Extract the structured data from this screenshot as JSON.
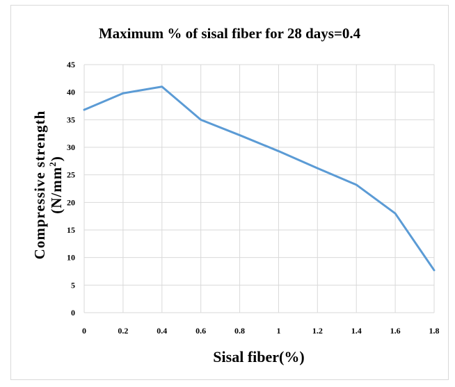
{
  "chart_data": {
    "type": "line",
    "title": "Maximum % of sisal fiber for 28 days=0.4",
    "xlabel": "Sisal fiber(%)",
    "ylabel_line1": "Compressive strength",
    "ylabel_line2_main": "(N/mm",
    "ylabel_line2_sup": "2",
    "ylabel_line2_end": ")",
    "x": [
      0,
      0.2,
      0.4,
      0.6,
      0.8,
      1.0,
      1.2,
      1.4,
      1.6,
      1.8
    ],
    "series": [
      {
        "values": [
          36.8,
          39.8,
          41.0,
          35.0,
          32.2,
          29.3,
          26.2,
          23.2,
          18.0,
          7.7
        ]
      }
    ],
    "xticks": [
      "0",
      "0.2",
      "0.4",
      "0.6",
      "0.8",
      "1",
      "1.2",
      "1.4",
      "1.6",
      "1.8"
    ],
    "yticks": [
      "0",
      "5",
      "10",
      "15",
      "20",
      "25",
      "30",
      "35",
      "40",
      "45"
    ],
    "xlim": [
      0,
      1.8
    ],
    "ylim": [
      0,
      45
    ],
    "grid": "both",
    "line_color": "#5b9bd5"
  }
}
